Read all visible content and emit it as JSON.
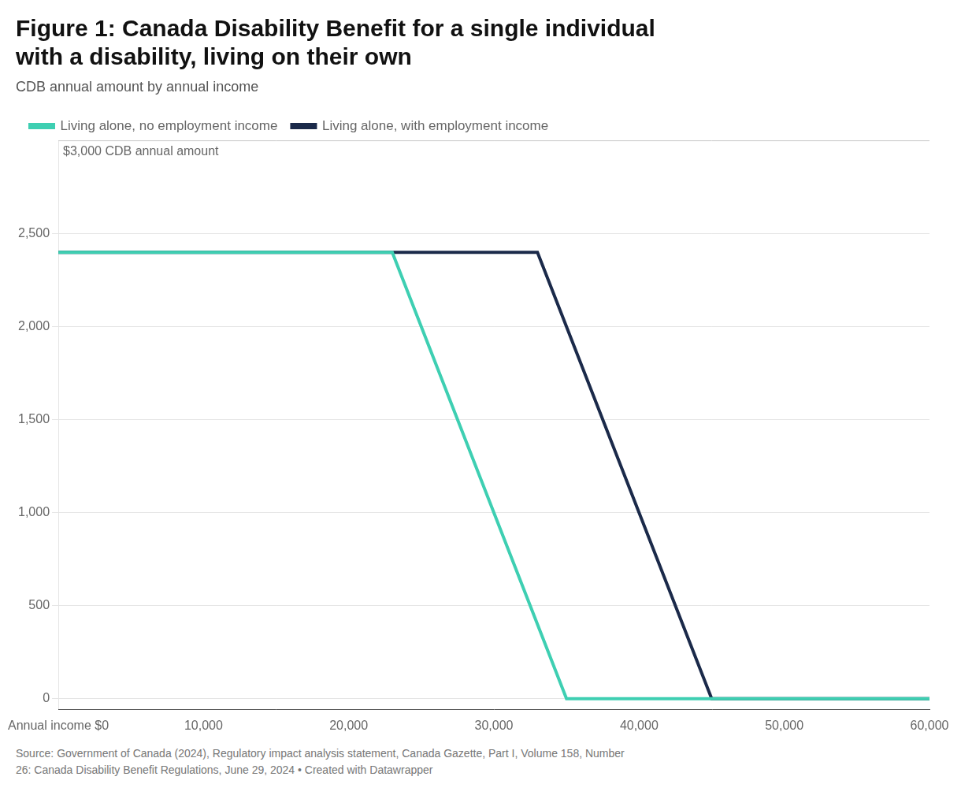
{
  "chart_data": {
    "type": "line",
    "title": [
      "Figure 1: Canada Disability Benefit for a single individual",
      "with a disability, living on their own"
    ],
    "subtitle": "CDB annual amount by annual income",
    "annotations": [
      {
        "text": "$3,000 CDB annual amount",
        "y": 3000
      }
    ],
    "source": "Source: Government of Canada (2024), Regulatory impact analysis statement, Canada Gazette, Part I, Volume 158, Number\n26: Canada Disability Benefit Regulations, June 29, 2024 • Created with Datawrapper",
    "series": [
      {
        "name": "Living alone, no employment income",
        "color": "#3ECFB2",
        "x": [
          0,
          23000,
          35000,
          60000
        ],
        "values": [
          2400,
          2400,
          0,
          0
        ]
      },
      {
        "name": "Living alone, with employment income",
        "color": "#1B2A4A",
        "x": [
          0,
          33000,
          45000,
          60000
        ],
        "values": [
          2400,
          2400,
          0,
          0
        ]
      }
    ],
    "xlim": [
      0,
      60000
    ],
    "ylim": [
      -60,
      3000
    ],
    "xticks": [
      {
        "value": 0,
        "label": "Annual income $0"
      },
      {
        "value": 10000,
        "label": "10,000"
      },
      {
        "value": 20000,
        "label": "20,000"
      },
      {
        "value": 30000,
        "label": "30,000"
      },
      {
        "value": 40000,
        "label": "40,000"
      },
      {
        "value": 50000,
        "label": "50,000"
      },
      {
        "value": 60000,
        "label": "60,000"
      }
    ],
    "yticks": [
      0,
      500,
      {
        "value": 1000,
        "label": "1,000"
      },
      {
        "value": 1500,
        "label": "1,500"
      },
      {
        "value": 2000,
        "label": "2,000"
      },
      {
        "value": 2500,
        "label": "2,500"
      }
    ],
    "grid": "y",
    "legend": "upper left"
  }
}
